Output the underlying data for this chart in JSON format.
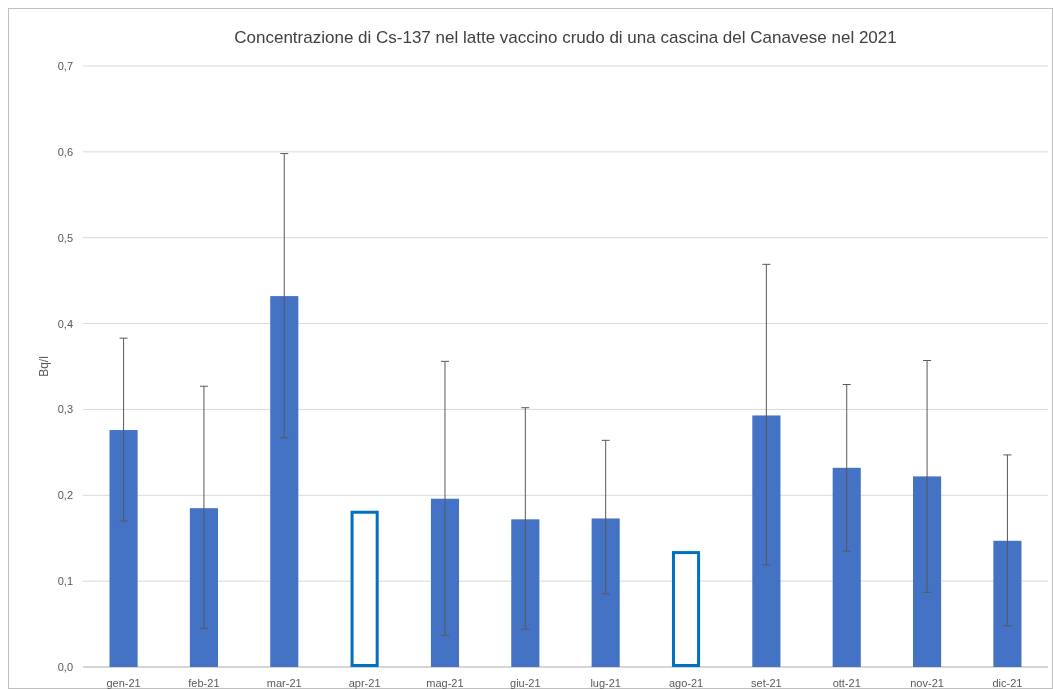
{
  "chart_data": {
    "type": "bar",
    "title": "Concentrazione di Cs-137 nel latte vaccino crudo di una cascina del Canavese nel 2021",
    "ylabel": "Bq/l",
    "categories": [
      "gen-21",
      "feb-21",
      "mar-21",
      "apr-21",
      "mag-21",
      "giu-21",
      "lug-21",
      "ago-21",
      "set-21",
      "ott-21",
      "nov-21",
      "dic-21"
    ],
    "stacked": true,
    "series": [
      {
        "color": "#4472c4",
        "values": [
          0.276,
          0.185,
          0.432,
          null,
          0.196,
          0.172,
          0.173,
          null,
          0.293,
          0.232,
          0.222,
          0.147
        ],
        "errors": [
          [
            0.17,
            0.383
          ],
          [
            0.045,
            0.327
          ],
          [
            0.267,
            0.598
          ],
          null,
          [
            0.037,
            0.356
          ],
          [
            0.044,
            0.302
          ],
          [
            0.085,
            0.264
          ],
          null,
          [
            0.119,
            0.469
          ],
          [
            0.135,
            0.329
          ],
          [
            0.087,
            0.357
          ],
          [
            0.048,
            0.247
          ]
        ]
      },
      {
        "color": "#0070c0",
        "values": [
          null,
          null,
          null,
          0.182,
          null,
          null,
          null,
          0.135,
          null,
          null,
          null,
          null
        ]
      }
    ],
    "ylim": [
      0,
      0.7
    ],
    "yticks": [
      {
        "value": 0,
        "label": "0,0"
      },
      {
        "value": 0.1,
        "label": "0,1"
      },
      {
        "value": 0.2,
        "label": "0,2"
      },
      {
        "value": 0.3,
        "label": "0,3"
      },
      {
        "value": 0.4,
        "label": "0,4"
      },
      {
        "value": 0.5,
        "label": "0,5"
      },
      {
        "value": 0.6,
        "label": "0,6"
      },
      {
        "value": 0.7,
        "label": "0,7"
      }
    ],
    "grid": "y"
  }
}
